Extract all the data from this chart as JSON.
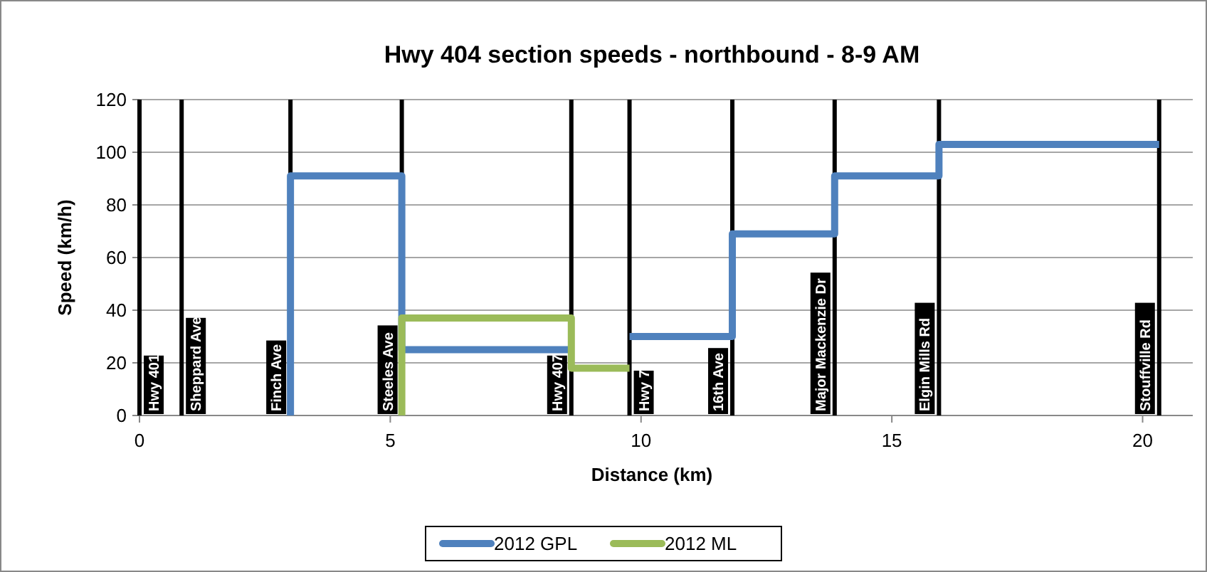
{
  "chart_data": {
    "type": "line",
    "title": "Hwy 404 section speeds - northbound - 8-9 AM",
    "xlabel": "Distance (km)",
    "ylabel": "Speed (km/h)",
    "xlim": [
      0,
      21
    ],
    "xticks": [
      0,
      5,
      10,
      15,
      20
    ],
    "ylim": [
      0,
      120
    ],
    "yticks": [
      0,
      20,
      40,
      60,
      80,
      100,
      120
    ],
    "grid": "y",
    "legend": "bottom",
    "line_style": "solid",
    "marker": "none",
    "series": [
      {
        "name": "2012 GPL",
        "color": "#4f81bd",
        "x": [
          3.01,
          3.01,
          5.23,
          5.23,
          8.61
        ],
        "values": [
          0,
          91,
          91,
          25,
          25
        ]
      },
      {
        "color": "#4f81bd",
        "x": [
          9.77,
          11.82,
          11.82,
          13.86,
          13.86,
          15.94,
          15.94,
          20.33
        ],
        "values": [
          30,
          30,
          69,
          69,
          91,
          91,
          103,
          103
        ]
      },
      {
        "name": "2012 ML",
        "color": "#9bbb59",
        "x": [
          5.23,
          5.23,
          8.61,
          8.61,
          9.77
        ],
        "values": [
          0,
          37,
          37,
          18,
          18
        ]
      }
    ],
    "ref_lines": [
      {
        "axis": "x",
        "value": 0,
        "label": "Hwy 401",
        "color": "#000000"
      },
      {
        "axis": "x",
        "value": 0.84,
        "label": "Sheppard Ave",
        "color": "#000000"
      },
      {
        "axis": "x",
        "value": 3.01,
        "label": "Finch Ave",
        "color": "#000000"
      },
      {
        "axis": "x",
        "value": 5.23,
        "label": "Steeles Ave",
        "color": "#000000"
      },
      {
        "axis": "x",
        "value": 8.61,
        "label": "Hwy 407",
        "color": "#000000"
      },
      {
        "axis": "x",
        "value": 9.77,
        "label": "Hwy 7",
        "color": "#000000"
      },
      {
        "axis": "x",
        "value": 11.82,
        "label": "16th Ave",
        "color": "#000000"
      },
      {
        "axis": "x",
        "value": 13.86,
        "label": "Major Mackenzie Dr",
        "color": "#000000"
      },
      {
        "axis": "x",
        "value": 15.94,
        "label": "Elgin Mills Rd",
        "color": "#000000"
      },
      {
        "axis": "x",
        "value": 20.33,
        "label": "Stouffville Rd",
        "color": "#000000"
      }
    ]
  }
}
